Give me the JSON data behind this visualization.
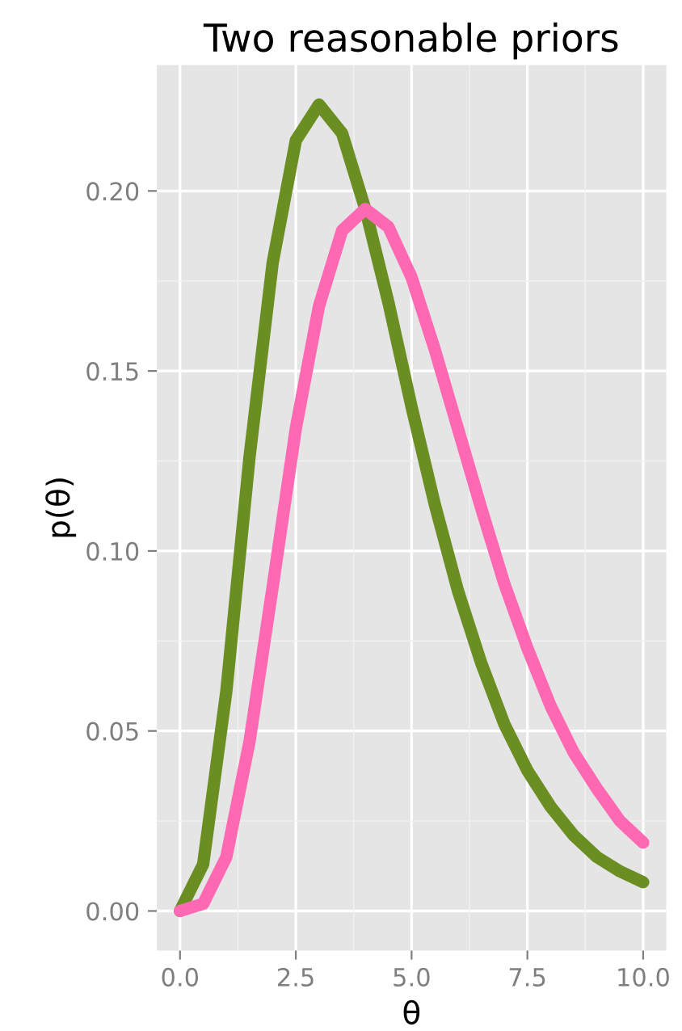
{
  "chart_data": {
    "type": "line",
    "title": "Two reasonable priors",
    "xlabel": "θ",
    "ylabel": "p(θ)",
    "x": [
      0,
      0.5,
      1,
      1.5,
      2,
      2.5,
      3,
      3.5,
      4,
      4.5,
      5,
      5.5,
      6,
      6.5,
      7,
      7.5,
      8,
      8.5,
      9,
      9.5,
      10
    ],
    "series": [
      {
        "color": "#6b8e23",
        "values": [
          0,
          0.013,
          0.061,
          0.126,
          0.18,
          0.214,
          0.224,
          0.216,
          0.195,
          0.169,
          0.14,
          0.113,
          0.089,
          0.069,
          0.052,
          0.039,
          0.029,
          0.021,
          0.015,
          0.011,
          0.008
        ]
      },
      {
        "color": "#ff69b4",
        "values": [
          0,
          0.002,
          0.015,
          0.047,
          0.09,
          0.134,
          0.168,
          0.189,
          0.195,
          0.19,
          0.176,
          0.156,
          0.134,
          0.112,
          0.091,
          0.073,
          0.057,
          0.044,
          0.034,
          0.025,
          0.019
        ]
      }
    ],
    "xlim": [
      -0.5,
      10.5
    ],
    "ylim": [
      -0.011,
      0.235
    ],
    "xticks": [
      {
        "value": 0,
        "label": "0.0"
      },
      {
        "value": 2.5,
        "label": "2.5"
      },
      {
        "value": 5,
        "label": "5.0"
      },
      {
        "value": 7.5,
        "label": "7.5"
      },
      {
        "value": 10,
        "label": "10.0"
      }
    ],
    "yticks": [
      {
        "value": 0,
        "label": "0.00"
      },
      {
        "value": 0.05,
        "label": "0.05"
      },
      {
        "value": 0.1,
        "label": "0.10"
      },
      {
        "value": 0.15,
        "label": "0.15"
      },
      {
        "value": 0.2,
        "label": "0.20"
      }
    ],
    "grid": true,
    "line_style": "solid",
    "marker": "none"
  }
}
